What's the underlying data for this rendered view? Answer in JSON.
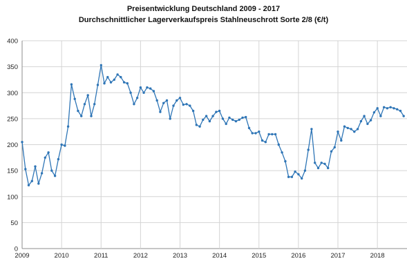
{
  "chart_data": {
    "type": "line",
    "title": "Preisentwicklung Deutschland 2009 - 2017",
    "subtitle": "Durchschnittlicher Lagerverkaufspreis Stahlneuschrott Sorte 2/8 (€/t)",
    "xlabel": "",
    "ylabel": "",
    "ylim": [
      0,
      400
    ],
    "yticks": [
      "0",
      "50",
      "100",
      "150",
      "200",
      "250",
      "300",
      "350",
      "400"
    ],
    "xlim": [
      2009,
      2018.75
    ],
    "xticks": [
      "2009",
      "2010",
      "2011",
      "2012",
      "2013",
      "2014",
      "2015",
      "2016",
      "2017",
      "2018"
    ],
    "grid": true,
    "legend": "none",
    "series": [
      {
        "color": "#2e75b6",
        "start_year": 2009,
        "start_month": 1,
        "values": [
          205,
          153,
          122,
          130,
          158,
          125,
          145,
          175,
          185,
          150,
          140,
          172,
          200,
          198,
          235,
          316,
          288,
          265,
          255,
          278,
          295,
          255,
          278,
          315,
          353,
          318,
          330,
          320,
          325,
          335,
          330,
          320,
          318,
          300,
          278,
          290,
          310,
          300,
          310,
          308,
          303,
          285,
          263,
          280,
          285,
          250,
          275,
          285,
          290,
          277,
          278,
          275,
          265,
          238,
          235,
          248,
          255,
          245,
          255,
          263,
          265,
          250,
          240,
          252,
          248,
          245,
          248,
          252,
          253,
          232,
          222,
          222,
          225,
          208,
          205,
          220,
          220,
          220,
          200,
          185,
          168,
          138,
          138,
          148,
          143,
          135,
          150,
          190,
          230,
          165,
          155,
          165,
          163,
          155,
          187,
          195,
          225,
          208,
          235,
          232,
          230,
          225,
          230,
          245,
          255,
          240,
          247,
          262,
          270,
          255,
          272,
          270,
          272,
          270,
          268,
          265,
          255
        ]
      }
    ]
  }
}
